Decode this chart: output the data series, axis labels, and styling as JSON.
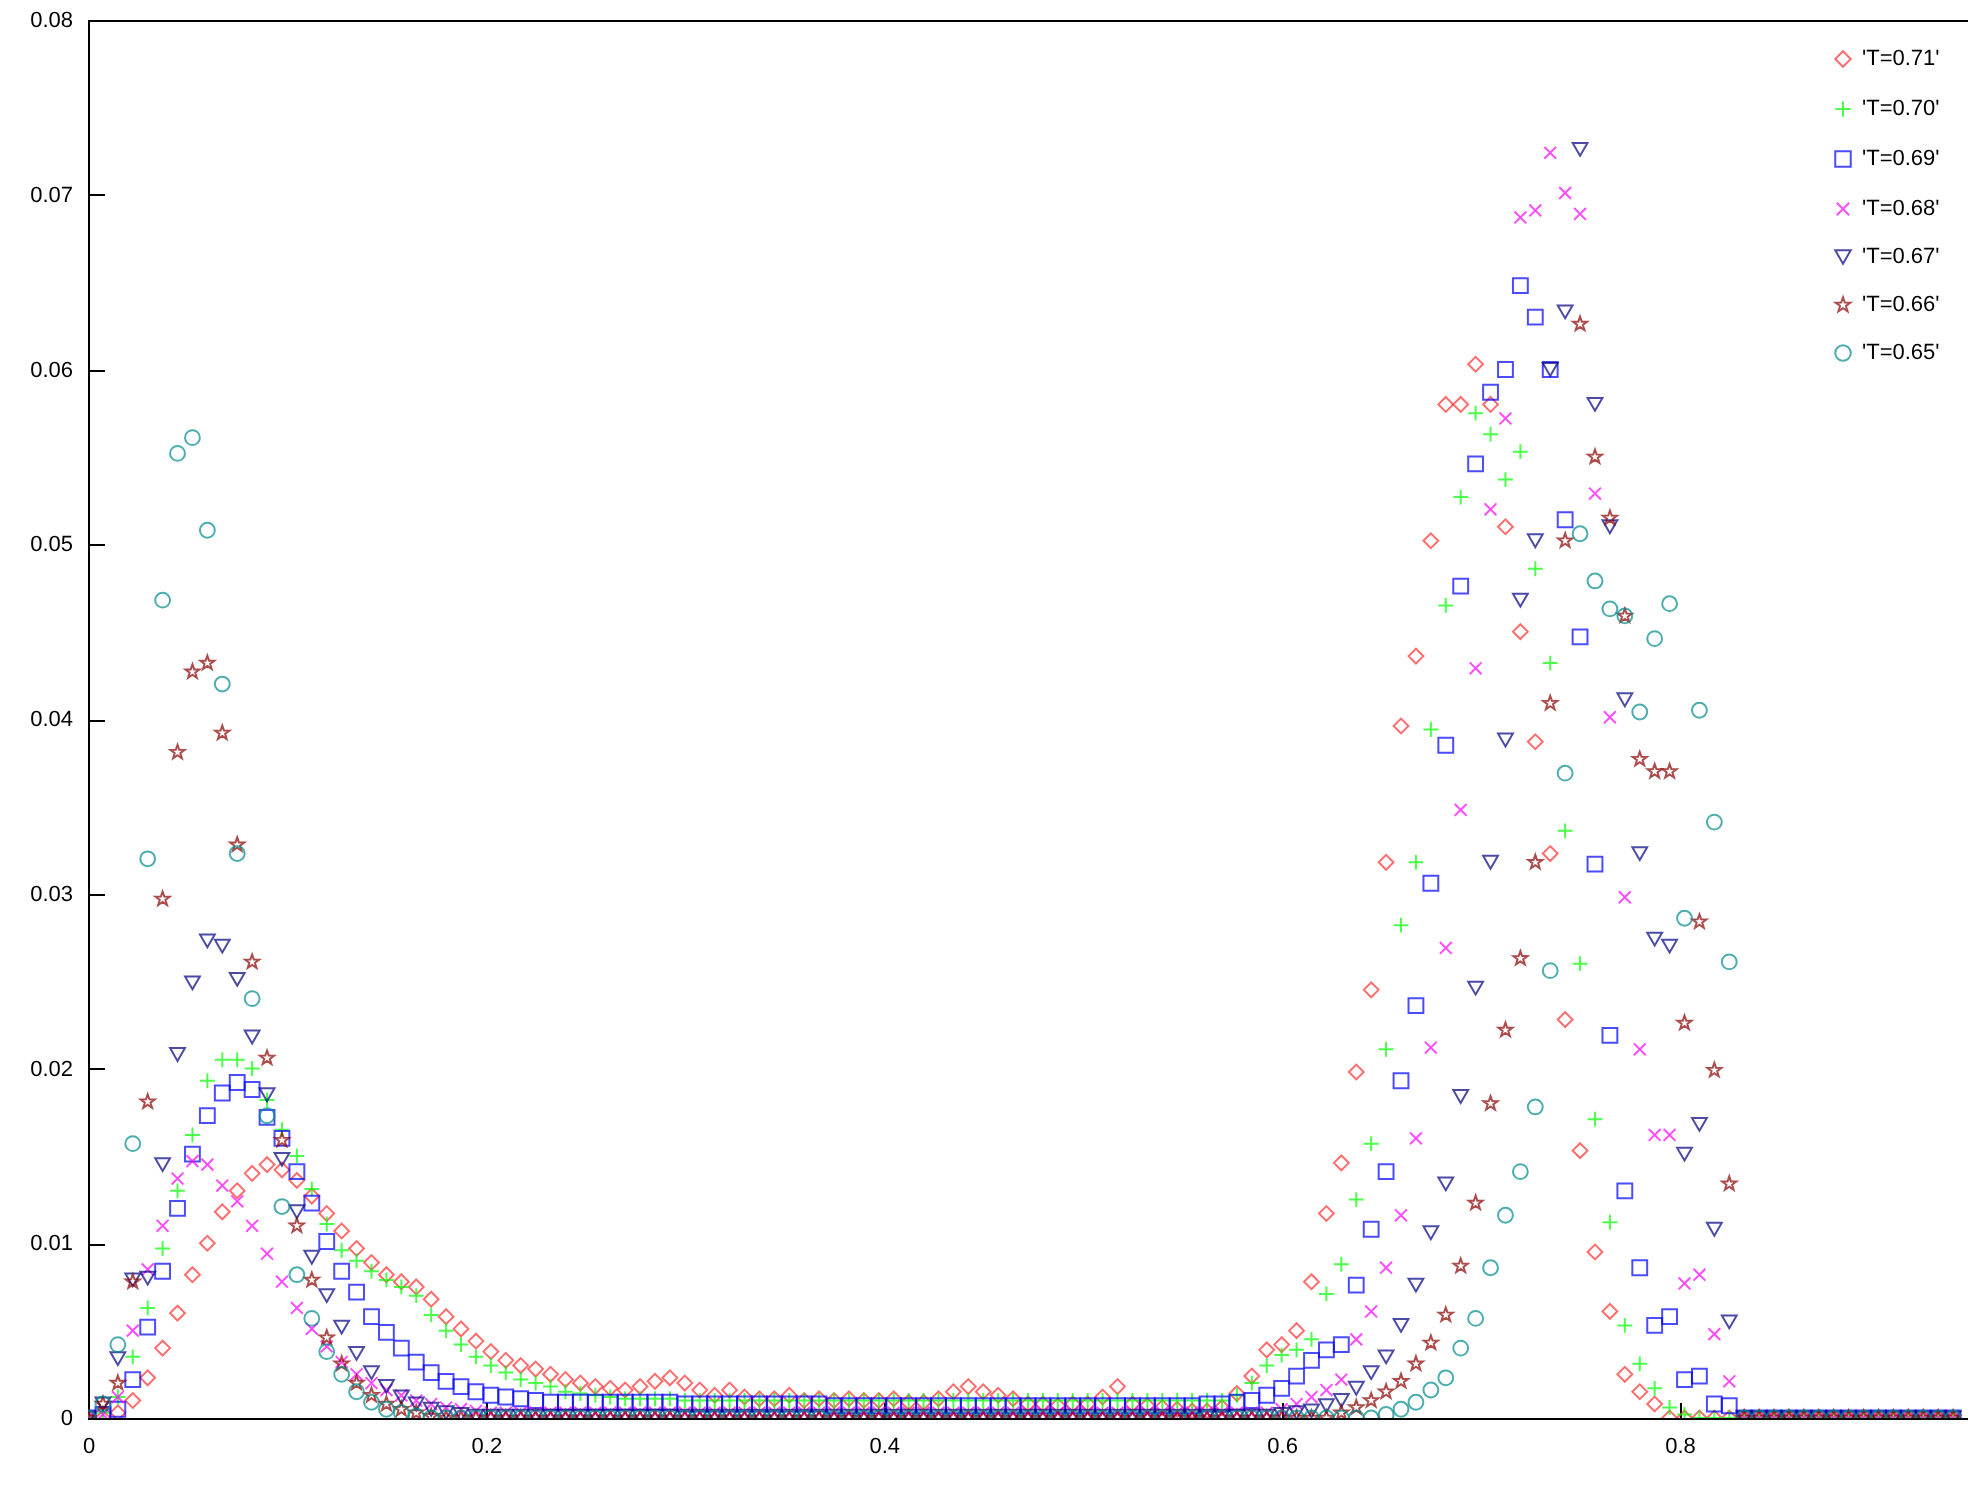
{
  "chart_data": {
    "type": "scatter",
    "x": [
      0,
      0.0075,
      0.015,
      0.0225,
      0.03,
      0.0375,
      0.045,
      0.0525,
      0.06,
      0.0675,
      0.075,
      0.0825,
      0.09,
      0.0975,
      0.105,
      0.1125,
      0.12,
      0.1275,
      0.135,
      0.1425,
      0.15,
      0.1575,
      0.165,
      0.1725,
      0.18,
      0.1875,
      0.195,
      0.2025,
      0.21,
      0.2175,
      0.225,
      0.2325,
      0.24,
      0.2475,
      0.255,
      0.2625,
      0.27,
      0.2775,
      0.285,
      0.2925,
      0.3,
      0.3075,
      0.315,
      0.3225,
      0.33,
      0.3375,
      0.345,
      0.3525,
      0.36,
      0.3675,
      0.375,
      0.3825,
      0.39,
      0.3975,
      0.405,
      0.4125,
      0.42,
      0.4275,
      0.435,
      0.4425,
      0.45,
      0.4575,
      0.465,
      0.4725,
      0.48,
      0.4875,
      0.495,
      0.5025,
      0.51,
      0.5175,
      0.525,
      0.5325,
      0.54,
      0.5475,
      0.555,
      0.5625,
      0.57,
      0.5775,
      0.585,
      0.5925,
      0.6,
      0.6075,
      0.615,
      0.6225,
      0.63,
      0.6375,
      0.645,
      0.6525,
      0.66,
      0.6675,
      0.675,
      0.6825,
      0.69,
      0.6975,
      0.705,
      0.7125,
      0.72,
      0.7275,
      0.735,
      0.7425,
      0.75,
      0.7575,
      0.765,
      0.7725,
      0.78,
      0.7875,
      0.795,
      0.8025,
      0.81,
      0.8175,
      0.825,
      0.8325,
      0.84,
      0.8475,
      0.855,
      0.8625,
      0.87,
      0.8775,
      0.885,
      0.8925,
      0.9,
      0.9075,
      0.915,
      0.9225,
      0.93,
      0.9375
    ],
    "series": [
      {
        "name": "'T=0.71'",
        "color": "#ff3030",
        "marker": "diamond",
        "values": [
          0,
          0,
          0.0003,
          0.001,
          0.0023,
          0.004,
          0.006,
          0.0082,
          0.01,
          0.0118,
          0.013,
          0.014,
          0.0145,
          0.0142,
          0.0136,
          0.0127,
          0.0117,
          0.0107,
          0.0097,
          0.0089,
          0.0082,
          0.0078,
          0.0075,
          0.0068,
          0.0058,
          0.0051,
          0.0044,
          0.0038,
          0.0033,
          0.003,
          0.0028,
          0.0025,
          0.0022,
          0.002,
          0.0018,
          0.0017,
          0.0016,
          0.0018,
          0.0021,
          0.0023,
          0.002,
          0.0016,
          0.0013,
          0.0016,
          0.0012,
          0.0011,
          0.0011,
          0.0013,
          0.001,
          0.0011,
          0.001,
          0.0011,
          0.001,
          0.001,
          0.0011,
          0.0009,
          0.0009,
          0.0011,
          0.0015,
          0.0018,
          0.0015,
          0.0013,
          0.0011,
          0.0008,
          0.0008,
          0.0007,
          0.0008,
          0.0008,
          0.0012,
          0.0018,
          0.0008,
          0.0007,
          0.0006,
          0.0005,
          0.0004,
          0.0004,
          0.0006,
          0.0014,
          0.0024,
          0.0039,
          0.0042,
          0.005,
          0.0078,
          0.0117,
          0.0146,
          0.0198,
          0.0245,
          0.0318,
          0.0396,
          0.0436,
          0.0502,
          0.058,
          0.058,
          0.0603,
          0.058,
          0.051,
          0.045,
          0.0387,
          0.0323,
          0.0228,
          0.0153,
          0.0095,
          0.0061,
          0.0025,
          0.0015,
          0.0008,
          0,
          0,
          0,
          0,
          0,
          0,
          0,
          0,
          0,
          0,
          0,
          0,
          0,
          0,
          0,
          0,
          0,
          0,
          0,
          0
        ]
      },
      {
        "name": "'T=0.70'",
        "color": "#00ff00",
        "marker": "cross",
        "values": [
          0,
          0.0003,
          0.0012,
          0.0035,
          0.0063,
          0.0097,
          0.013,
          0.0162,
          0.0193,
          0.0205,
          0.0205,
          0.02,
          0.0182,
          0.0165,
          0.015,
          0.0131,
          0.0111,
          0.0096,
          0.009,
          0.0084,
          0.0079,
          0.0075,
          0.007,
          0.0059,
          0.005,
          0.0042,
          0.0035,
          0.003,
          0.0026,
          0.0022,
          0.002,
          0.0018,
          0.0015,
          0.0014,
          0.0013,
          0.0012,
          0.0011,
          0.0011,
          0.0011,
          0.0011,
          0.001,
          0.001,
          0.001,
          0.001,
          0.001,
          0.001,
          0.001,
          0.001,
          0.001,
          0.001,
          0.001,
          0.001,
          0.001,
          0.001,
          0.001,
          0.001,
          0.001,
          0.001,
          0.001,
          0.001,
          0.001,
          0.001,
          0.001,
          0.001,
          0.001,
          0.001,
          0.001,
          0.001,
          0.001,
          0.001,
          0.001,
          0.001,
          0.001,
          0.001,
          0.001,
          0.001,
          0.001,
          0.0013,
          0.002,
          0.003,
          0.0036,
          0.0039,
          0.0045,
          0.0071,
          0.0088,
          0.0125,
          0.0157,
          0.0211,
          0.0282,
          0.0318,
          0.0394,
          0.0465,
          0.0527,
          0.0575,
          0.0563,
          0.0537,
          0.0553,
          0.0486,
          0.0432,
          0.0336,
          0.026,
          0.0171,
          0.0112,
          0.0053,
          0.0031,
          0.0017,
          0.0006,
          0.0002,
          0,
          0,
          0,
          0,
          0,
          0,
          0,
          0,
          0,
          0,
          0,
          0,
          0,
          0,
          0,
          0,
          0,
          0
        ]
      },
      {
        "name": "'T=0.69'",
        "color": "#0000ff",
        "marker": "square",
        "values": [
          0,
          0.0002,
          0.0005,
          0.0022,
          0.0052,
          0.0084,
          0.012,
          0.0151,
          0.0173,
          0.0186,
          0.0192,
          0.0188,
          0.0172,
          0.016,
          0.0141,
          0.0123,
          0.0101,
          0.0084,
          0.0072,
          0.0058,
          0.0049,
          0.004,
          0.0032,
          0.0026,
          0.0021,
          0.0018,
          0.0015,
          0.0013,
          0.0012,
          0.0011,
          0.001,
          0.0009,
          0.0009,
          0.0009,
          0.0009,
          0.0009,
          0.0009,
          0.0009,
          0.0009,
          0.0009,
          0.0008,
          0.0008,
          0.0008,
          0.0008,
          0.0008,
          0.0008,
          0.0008,
          0.0008,
          0.0008,
          0.0008,
          0.0007,
          0.0007,
          0.0007,
          0.0007,
          0.0007,
          0.0007,
          0.0007,
          0.0007,
          0.0007,
          0.0007,
          0.0007,
          0.0007,
          0.0007,
          0.0007,
          0.0007,
          0.0007,
          0.0007,
          0.0007,
          0.0007,
          0.0007,
          0.0007,
          0.0007,
          0.0007,
          0.0007,
          0.0007,
          0.0008,
          0.0008,
          0.0009,
          0.001,
          0.0013,
          0.0017,
          0.0024,
          0.0033,
          0.0039,
          0.0042,
          0.0076,
          0.0108,
          0.0141,
          0.0193,
          0.0236,
          0.0306,
          0.0385,
          0.0476,
          0.0546,
          0.0587,
          0.06,
          0.0648,
          0.063,
          0.06,
          0.0514,
          0.0447,
          0.0317,
          0.0219,
          0.013,
          0.0086,
          0.0053,
          0.0058,
          0.0022,
          0.0024,
          0.0008,
          0.0007,
          0,
          0,
          0,
          0,
          0,
          0,
          0,
          0,
          0,
          0,
          0,
          0,
          0,
          0,
          0
        ]
      },
      {
        "name": "'T=0.68'",
        "color": "#ff00ff",
        "marker": "x",
        "values": [
          0,
          0.0002,
          0.0012,
          0.005,
          0.0085,
          0.011,
          0.0137,
          0.0147,
          0.0145,
          0.0133,
          0.0124,
          0.011,
          0.0094,
          0.0078,
          0.0063,
          0.0051,
          0.0041,
          0.0032,
          0.0025,
          0.002,
          0.0016,
          0.0013,
          0.001,
          0.0008,
          0.0006,
          0.0005,
          0.0004,
          0.0003,
          0.0003,
          0.0003,
          0.0003,
          0.0003,
          0.0003,
          0.0003,
          0.0003,
          0.0003,
          0.0003,
          0.0003,
          0.0003,
          0.0003,
          0.0003,
          0.0003,
          0.0003,
          0.0003,
          0.0003,
          0.0003,
          0.0003,
          0.0003,
          0.0003,
          0.0003,
          0.0003,
          0.0003,
          0.0003,
          0.0003,
          0.0003,
          0.0003,
          0.0003,
          0.0003,
          0.0003,
          0.0003,
          0.0003,
          0.0003,
          0.0003,
          0.0003,
          0.0003,
          0.0003,
          0.0003,
          0.0003,
          0.0003,
          0.0003,
          0.0003,
          0.0003,
          0.0003,
          0.0003,
          0.0003,
          0.0003,
          0.0003,
          0.0003,
          0.0003,
          0.0003,
          0.0005,
          0.0008,
          0.0012,
          0.0016,
          0.0022,
          0.0045,
          0.0061,
          0.0086,
          0.0116,
          0.016,
          0.0212,
          0.0269,
          0.0348,
          0.0429,
          0.052,
          0.0572,
          0.0687,
          0.0691,
          0.0724,
          0.0701,
          0.0689,
          0.0529,
          0.0401,
          0.0298,
          0.0211,
          0.0162,
          0.0162,
          0.0077,
          0.0082,
          0.0048,
          0.0021,
          0,
          0,
          0,
          0,
          0,
          0,
          0,
          0,
          0,
          0,
          0,
          0,
          0,
          0,
          0
        ]
      },
      {
        "name": "'T=0.67'",
        "color": "#000080",
        "marker": "triangle",
        "values": [
          0,
          0.0008,
          0.0034,
          0.0079,
          0.008,
          0.0145,
          0.0208,
          0.0249,
          0.0273,
          0.027,
          0.0251,
          0.0218,
          0.0185,
          0.0148,
          0.0118,
          0.0092,
          0.007,
          0.0052,
          0.0037,
          0.0026,
          0.0018,
          0.0012,
          0.0008,
          0.0005,
          0.0003,
          0.0002,
          0.0001,
          0.0001,
          0.0001,
          0.0001,
          0.0001,
          0.0001,
          0.0001,
          0.0001,
          0.0001,
          0.0001,
          0.0001,
          0.0001,
          0.0001,
          0.0001,
          0.0001,
          0.0001,
          0.0001,
          0.0001,
          0.0001,
          0.0001,
          0.0001,
          0.0001,
          0.0001,
          0.0001,
          0.0001,
          0.0001,
          0.0001,
          0.0001,
          0.0001,
          0.0001,
          0.0001,
          0.0001,
          0.0001,
          0.0001,
          0.0001,
          0.0001,
          0.0001,
          0.0001,
          0.0001,
          0.0001,
          0.0001,
          0.0001,
          0.0001,
          0.0001,
          0.0001,
          0.0001,
          0.0001,
          0.0001,
          0.0001,
          0.0001,
          0.0001,
          0.0001,
          0.0001,
          0.0001,
          0.0002,
          0.0003,
          0.0004,
          0.0007,
          0.001,
          0.0017,
          0.0026,
          0.0035,
          0.0053,
          0.0076,
          0.0106,
          0.0134,
          0.0184,
          0.0246,
          0.0318,
          0.0388,
          0.0468,
          0.0502,
          0.06,
          0.0633,
          0.0726,
          0.058,
          0.051,
          0.0411,
          0.0323,
          0.0274,
          0.027,
          0.0151,
          0.0168,
          0.0108,
          0.0055,
          0,
          0,
          0,
          0,
          0,
          0,
          0,
          0,
          0,
          0,
          0,
          0,
          0,
          0,
          0
        ]
      },
      {
        "name": "'T=0.66'",
        "color": "#8b0000",
        "marker": "star",
        "values": [
          0,
          0.0008,
          0.002,
          0.0078,
          0.0181,
          0.0297,
          0.0381,
          0.0427,
          0.0432,
          0.0392,
          0.0328,
          0.0261,
          0.0206,
          0.0159,
          0.011,
          0.0079,
          0.0046,
          0.0031,
          0.002,
          0.0013,
          0.0008,
          0.0005,
          0.0003,
          0.0001,
          0,
          0,
          0,
          0,
          0,
          0,
          0,
          0,
          0,
          0,
          0,
          0,
          0,
          0,
          0,
          0,
          0,
          0,
          0,
          0,
          0,
          0,
          0,
          0,
          0,
          0,
          0,
          0,
          0,
          0,
          0,
          0,
          0,
          0,
          0,
          0,
          0,
          0,
          0,
          0,
          0,
          0,
          0,
          0,
          0,
          0,
          0,
          0,
          0,
          0,
          0,
          0,
          0,
          0,
          0,
          0,
          0,
          0,
          0,
          0,
          0.0003,
          0.0006,
          0.001,
          0.0015,
          0.0021,
          0.0031,
          0.0043,
          0.0059,
          0.0087,
          0.0123,
          0.018,
          0.0222,
          0.0263,
          0.0318,
          0.0409,
          0.0502,
          0.0626,
          0.055,
          0.0515,
          0.0459,
          0.0377,
          0.037,
          0.037,
          0.0226,
          0.0284,
          0.0199,
          0.0134,
          0,
          0,
          0,
          0,
          0,
          0,
          0,
          0,
          0,
          0,
          0,
          0,
          0,
          0,
          0
        ]
      },
      {
        "name": "'T=0.65'",
        "color": "#008b8b",
        "marker": "circle",
        "values": [
          0,
          0.0008,
          0.0042,
          0.0157,
          0.032,
          0.0468,
          0.0552,
          0.0561,
          0.0508,
          0.042,
          0.0323,
          0.024,
          0.0173,
          0.0121,
          0.0082,
          0.0057,
          0.0038,
          0.0025,
          0.0015,
          0.0009,
          0.0005,
          0.0003,
          0.0001,
          0,
          0,
          0,
          0,
          0,
          0,
          0,
          0,
          0,
          0,
          0,
          0,
          0,
          0,
          0,
          0,
          0,
          0,
          0,
          0,
          0,
          0,
          0,
          0,
          0,
          0,
          0,
          0,
          0,
          0,
          0,
          0,
          0,
          0,
          0,
          0,
          0,
          0,
          0,
          0,
          0,
          0,
          0,
          0,
          0,
          0,
          0,
          0,
          0,
          0,
          0,
          0,
          0,
          0,
          0,
          0,
          0,
          0,
          0,
          0,
          0,
          0,
          0,
          0,
          0.0002,
          0.0005,
          0.0009,
          0.0016,
          0.0023,
          0.004,
          0.0057,
          0.0086,
          0.0116,
          0.0141,
          0.0178,
          0.0256,
          0.0369,
          0.0506,
          0.0479,
          0.0463,
          0.0459,
          0.0404,
          0.0446,
          0.0466,
          0.0286,
          0.0405,
          0.0341,
          0.0261,
          0,
          0,
          0,
          0,
          0,
          0,
          0,
          0,
          0,
          0,
          0,
          0,
          0,
          0,
          0
        ]
      }
    ],
    "xlim": [
      0,
      0.945
    ],
    "xticks": [
      0,
      0.2,
      0.4,
      0.6,
      0.8
    ],
    "ylim": [
      0,
      0.08
    ],
    "yticks": [
      0,
      0.01,
      0.02,
      0.03,
      0.04,
      0.05,
      0.06,
      0.07,
      0.08
    ],
    "grid": false,
    "legend": "top right"
  }
}
